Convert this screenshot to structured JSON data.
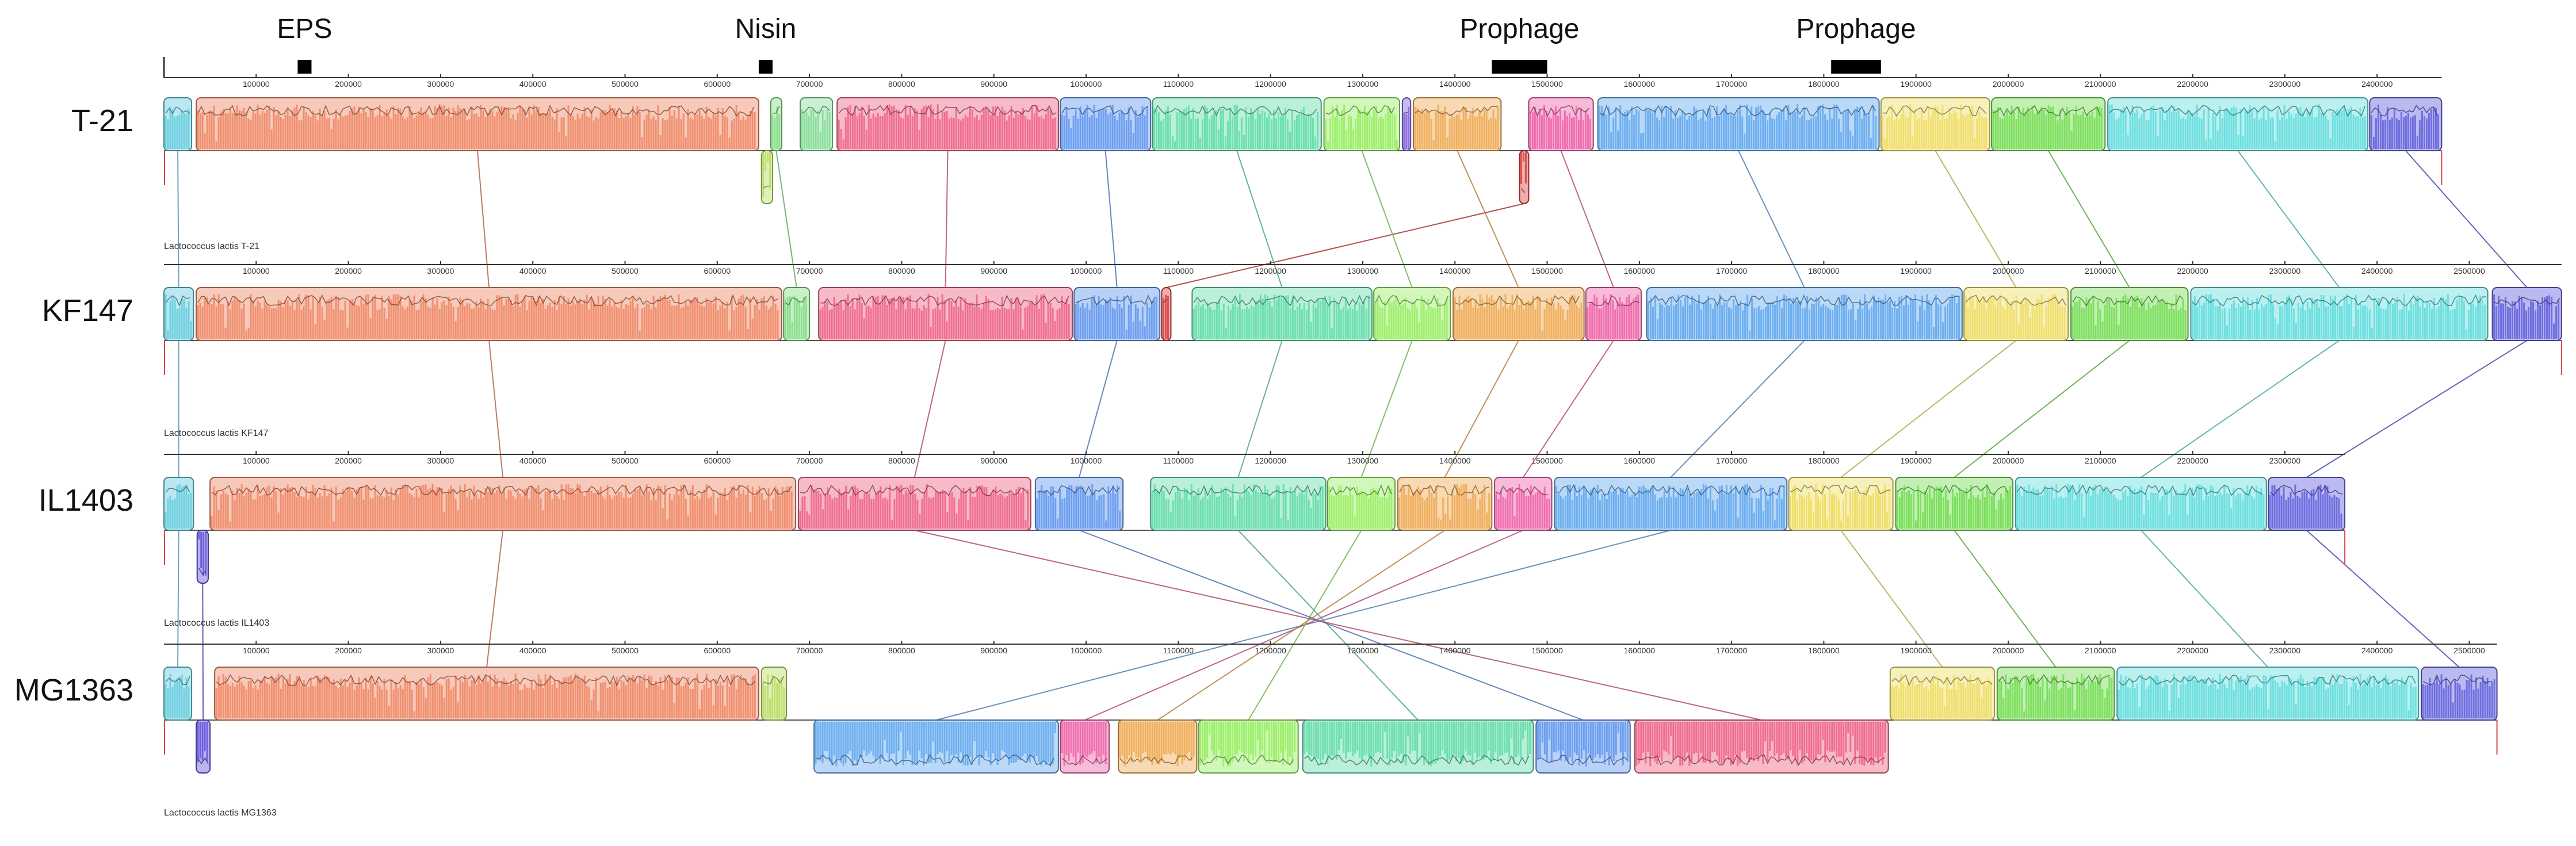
{
  "annotations": [
    {
      "label": "EPS",
      "start": 145000,
      "end": 160000
    },
    {
      "label": "Nisin",
      "start": 645000,
      "end": 660000
    },
    {
      "label": "Prophage",
      "start": 1440000,
      "end": 1500000
    },
    {
      "label": "Prophage",
      "start": 1808000,
      "end": 1862000
    }
  ],
  "genomes": [
    {
      "label": "T-21",
      "caption": "Lactococcus lactis T-21",
      "length": 2470000,
      "ticks": [
        "100000",
        "200000",
        "300000",
        "400000",
        "500000",
        "600000",
        "700000",
        "800000",
        "900000",
        "1000000",
        "1100000",
        "1200000",
        "1300000",
        "1400000",
        "1500000",
        "1600000",
        "1700000",
        "1800000",
        "1900000",
        "2000000",
        "2100000",
        "2200000",
        "2300000",
        "2400000"
      ],
      "tick_values": [
        100000,
        200000,
        300000,
        400000,
        500000,
        600000,
        700000,
        800000,
        900000,
        1000000,
        1100000,
        1200000,
        1300000,
        1400000,
        1500000,
        1600000,
        1700000,
        1800000,
        1900000,
        2000000,
        2100000,
        2200000,
        2300000,
        2400000
      ],
      "blocks": [
        {
          "id": "B1",
          "start": 0,
          "end": 30000,
          "strand": "+",
          "color": "#66ccdd"
        },
        {
          "id": "B3",
          "start": 35000,
          "end": 645000,
          "strand": "+",
          "color": "#ee8866"
        },
        {
          "id": "B4",
          "start": 648000,
          "end": 660000,
          "strand": "-",
          "color": "#bbdd66"
        },
        {
          "id": "B5",
          "start": 658000,
          "end": 670000,
          "strand": "+",
          "color": "#88dd88"
        },
        {
          "id": "B6",
          "start": 690000,
          "end": 725000,
          "strand": "+",
          "color": "#88dd99"
        },
        {
          "id": "B7",
          "start": 730000,
          "end": 970000,
          "strand": "+",
          "color": "#ee6688"
        },
        {
          "id": "B8",
          "start": 972000,
          "end": 1070000,
          "strand": "+",
          "color": "#6699ee"
        },
        {
          "id": "B9",
          "start": 1072000,
          "end": 1255000,
          "strand": "+",
          "color": "#66ddaa"
        },
        {
          "id": "B10",
          "start": 1258000,
          "end": 1340000,
          "strand": "+",
          "color": "#99ee66"
        },
        {
          "id": "B11",
          "start": 1343000,
          "end": 1352000,
          "strand": "+",
          "color": "#8866dd"
        },
        {
          "id": "B12",
          "start": 1355000,
          "end": 1450000,
          "strand": "+",
          "color": "#eeaa55"
        },
        {
          "id": "B13",
          "start": 1470000,
          "end": 1480000,
          "strand": "-",
          "color": "#dd4444"
        },
        {
          "id": "B14",
          "start": 1480000,
          "end": 1550000,
          "strand": "+",
          "color": "#ee66aa"
        },
        {
          "id": "B15",
          "start": 1555000,
          "end": 1860000,
          "strand": "+",
          "color": "#66aaee"
        },
        {
          "id": "B16",
          "start": 1862000,
          "end": 1980000,
          "strand": "+",
          "color": "#eedd66"
        },
        {
          "id": "B17",
          "start": 1982000,
          "end": 2105000,
          "strand": "+",
          "color": "#77dd55"
        },
        {
          "id": "B18",
          "start": 2108000,
          "end": 2390000,
          "strand": "+",
          "color": "#66dddd"
        },
        {
          "id": "B19",
          "start": 2392000,
          "end": 2470000,
          "strand": "+",
          "color": "#6666dd"
        }
      ]
    },
    {
      "label": "KF147",
      "caption": "Lactococcus lactis KF147",
      "length": 2600000,
      "ticks": [
        "100000",
        "200000",
        "300000",
        "400000",
        "500000",
        "600000",
        "700000",
        "800000",
        "900000",
        "1000000",
        "1100000",
        "1200000",
        "1300000",
        "1400000",
        "1500000",
        "1600000",
        "1700000",
        "1800000",
        "1900000",
        "2000000",
        "2100000",
        "2200000",
        "2300000",
        "2400000",
        "2500000"
      ],
      "tick_values": [
        100000,
        200000,
        300000,
        400000,
        500000,
        600000,
        700000,
        800000,
        900000,
        1000000,
        1100000,
        1200000,
        1300000,
        1400000,
        1500000,
        1600000,
        1700000,
        1800000,
        1900000,
        2000000,
        2100000,
        2200000,
        2300000,
        2400000,
        2500000
      ],
      "blocks": [
        {
          "id": "B1",
          "start": 0,
          "end": 32000,
          "strand": "+",
          "color": "#66ccdd"
        },
        {
          "id": "B3",
          "start": 35000,
          "end": 670000,
          "strand": "+",
          "color": "#ee8866"
        },
        {
          "id": "B5",
          "start": 672000,
          "end": 700000,
          "strand": "+",
          "color": "#88dd88"
        },
        {
          "id": "B7",
          "start": 710000,
          "end": 985000,
          "strand": "+",
          "color": "#ee6688"
        },
        {
          "id": "B8",
          "start": 987000,
          "end": 1080000,
          "strand": "+",
          "color": "#6699ee"
        },
        {
          "id": "B13",
          "start": 1082000,
          "end": 1092000,
          "strand": "+",
          "color": "#dd4444"
        },
        {
          "id": "B9",
          "start": 1115000,
          "end": 1310000,
          "strand": "+",
          "color": "#66ddaa"
        },
        {
          "id": "B10",
          "start": 1312000,
          "end": 1395000,
          "strand": "+",
          "color": "#99ee66"
        },
        {
          "id": "B12",
          "start": 1398000,
          "end": 1540000,
          "strand": "+",
          "color": "#eeaa55"
        },
        {
          "id": "B14",
          "start": 1542000,
          "end": 1602000,
          "strand": "+",
          "color": "#ee66aa"
        },
        {
          "id": "B15",
          "start": 1608000,
          "end": 1950000,
          "strand": "+",
          "color": "#66aaee"
        },
        {
          "id": "B16",
          "start": 1952000,
          "end": 2065000,
          "strand": "+",
          "color": "#eedd66"
        },
        {
          "id": "B17",
          "start": 2068000,
          "end": 2195000,
          "strand": "+",
          "color": "#77dd55"
        },
        {
          "id": "B18",
          "start": 2198000,
          "end": 2520000,
          "strand": "+",
          "color": "#66dddd"
        },
        {
          "id": "B19",
          "start": 2525000,
          "end": 2600000,
          "strand": "+",
          "color": "#6666dd"
        }
      ]
    },
    {
      "label": "IL1403",
      "caption": "Lactococcus lactis IL1403",
      "length": 2365000,
      "ticks": [
        "100000",
        "200000",
        "300000",
        "400000",
        "500000",
        "600000",
        "700000",
        "800000",
        "900000",
        "1000000",
        "1100000",
        "1200000",
        "1300000",
        "1400000",
        "1500000",
        "1600000",
        "1700000",
        "1800000",
        "1900000",
        "2000000",
        "2100000",
        "2200000",
        "2300000"
      ],
      "tick_values": [
        100000,
        200000,
        300000,
        400000,
        500000,
        600000,
        700000,
        800000,
        900000,
        1000000,
        1100000,
        1200000,
        1300000,
        1400000,
        1500000,
        1600000,
        1700000,
        1800000,
        1900000,
        2000000,
        2100000,
        2200000,
        2300000
      ],
      "blocks": [
        {
          "id": "B1",
          "start": 0,
          "end": 32000,
          "strand": "+",
          "color": "#66ccdd"
        },
        {
          "id": "B2",
          "start": 36000,
          "end": 48000,
          "strand": "-",
          "color": "#6655dd"
        },
        {
          "id": "B3",
          "start": 50000,
          "end": 685000,
          "strand": "+",
          "color": "#ee8866"
        },
        {
          "id": "B7",
          "start": 688000,
          "end": 940000,
          "strand": "+",
          "color": "#ee6688"
        },
        {
          "id": "B8",
          "start": 945000,
          "end": 1040000,
          "strand": "+",
          "color": "#6699ee"
        },
        {
          "id": "B9",
          "start": 1070000,
          "end": 1260000,
          "strand": "+",
          "color": "#66ddaa"
        },
        {
          "id": "B10",
          "start": 1262000,
          "end": 1335000,
          "strand": "+",
          "color": "#99ee66"
        },
        {
          "id": "B12",
          "start": 1338000,
          "end": 1440000,
          "strand": "+",
          "color": "#eeaa55"
        },
        {
          "id": "B14",
          "start": 1443000,
          "end": 1505000,
          "strand": "+",
          "color": "#ee66aa"
        },
        {
          "id": "B15",
          "start": 1508000,
          "end": 1760000,
          "strand": "+",
          "color": "#66aaee"
        },
        {
          "id": "B16",
          "start": 1762000,
          "end": 1875000,
          "strand": "+",
          "color": "#eedd66"
        },
        {
          "id": "B17",
          "start": 1878000,
          "end": 2005000,
          "strand": "+",
          "color": "#77dd55"
        },
        {
          "id": "B18",
          "start": 2008000,
          "end": 2280000,
          "strand": "+",
          "color": "#66dddd"
        },
        {
          "id": "B19",
          "start": 2282000,
          "end": 2365000,
          "strand": "+",
          "color": "#6666dd"
        }
      ]
    },
    {
      "label": "MG1363",
      "caption": "Lactococcus lactis MG1363",
      "length": 2530000,
      "ticks": [
        "100000",
        "200000",
        "300000",
        "400000",
        "500000",
        "600000",
        "700000",
        "800000",
        "900000",
        "1000000",
        "1100000",
        "1200000",
        "1300000",
        "1400000",
        "1500000",
        "1600000",
        "1700000",
        "1800000",
        "1900000",
        "2000000",
        "2100000",
        "2200000",
        "2300000",
        "2400000",
        "2500000"
      ],
      "tick_values": [
        100000,
        200000,
        300000,
        400000,
        500000,
        600000,
        700000,
        800000,
        900000,
        1000000,
        1100000,
        1200000,
        1300000,
        1400000,
        1500000,
        1600000,
        1700000,
        1800000,
        1900000,
        2000000,
        2100000,
        2200000,
        2300000,
        2400000,
        2500000
      ],
      "blocks": [
        {
          "id": "B1",
          "start": 0,
          "end": 30000,
          "strand": "+",
          "color": "#66ccdd"
        },
        {
          "id": "B2",
          "start": 35000,
          "end": 50000,
          "strand": "-",
          "color": "#6655dd"
        },
        {
          "id": "B3",
          "start": 55000,
          "end": 645000,
          "strand": "+",
          "color": "#ee8866"
        },
        {
          "id": "B4",
          "start": 648000,
          "end": 675000,
          "strand": "+",
          "color": "#bbdd66"
        },
        {
          "id": "B15",
          "start": 705000,
          "end": 970000,
          "strand": "-",
          "color": "#66aaee"
        },
        {
          "id": "B14",
          "start": 972000,
          "end": 1025000,
          "strand": "-",
          "color": "#ee66aa"
        },
        {
          "id": "B12",
          "start": 1035000,
          "end": 1120000,
          "strand": "-",
          "color": "#eeaa55"
        },
        {
          "id": "B10",
          "start": 1122000,
          "end": 1230000,
          "strand": "-",
          "color": "#99ee66"
        },
        {
          "id": "B9",
          "start": 1235000,
          "end": 1485000,
          "strand": "-",
          "color": "#66ddaa"
        },
        {
          "id": "B8",
          "start": 1488000,
          "end": 1590000,
          "strand": "-",
          "color": "#6699ee"
        },
        {
          "id": "B7",
          "start": 1595000,
          "end": 1870000,
          "strand": "-",
          "color": "#ee6688"
        },
        {
          "id": "B16",
          "start": 1872000,
          "end": 1985000,
          "strand": "+",
          "color": "#eedd66"
        },
        {
          "id": "B17",
          "start": 1988000,
          "end": 2115000,
          "strand": "+",
          "color": "#77dd55"
        },
        {
          "id": "B18",
          "start": 2118000,
          "end": 2445000,
          "strand": "+",
          "color": "#66dddd"
        },
        {
          "id": "B19",
          "start": 2448000,
          "end": 2530000,
          "strand": "+",
          "color": "#6666dd"
        }
      ]
    }
  ]
}
